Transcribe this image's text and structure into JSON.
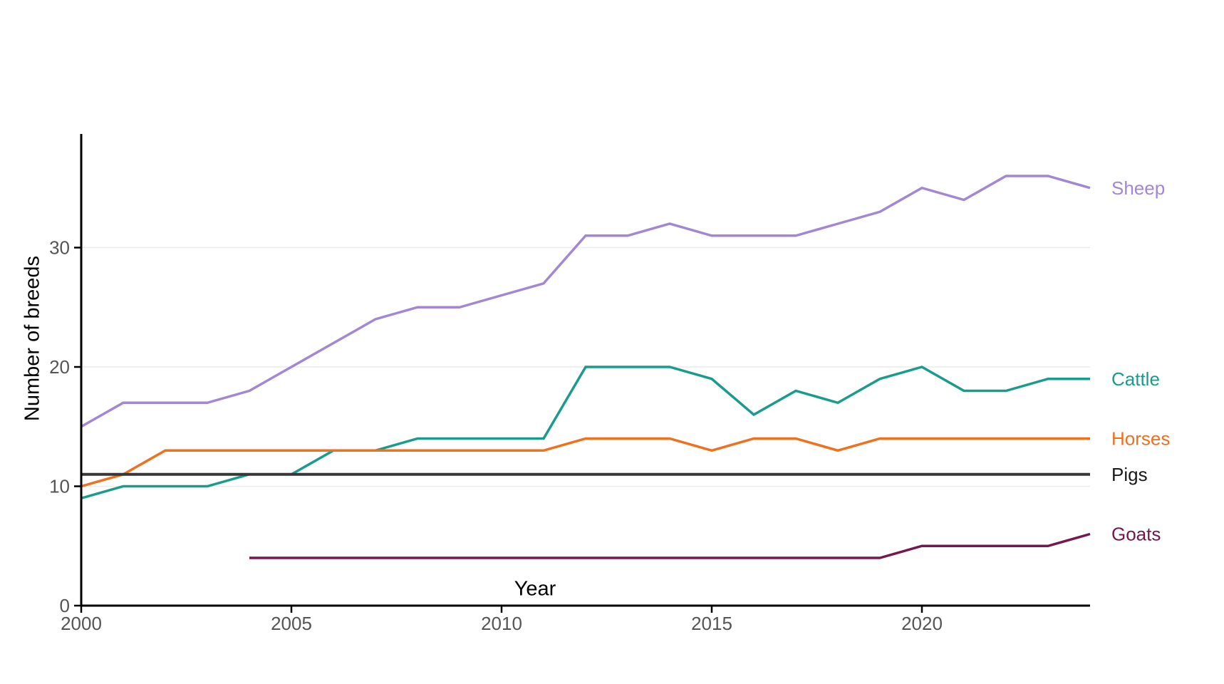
{
  "chart_data": {
    "type": "line",
    "title": "",
    "xlabel": "Year",
    "ylabel": "Number of breeds",
    "x": [
      2000,
      2001,
      2002,
      2003,
      2004,
      2005,
      2006,
      2007,
      2008,
      2009,
      2010,
      2011,
      2012,
      2013,
      2014,
      2015,
      2016,
      2017,
      2018,
      2019,
      2020,
      2021,
      2022,
      2023,
      2024
    ],
    "xlim": [
      2000,
      2024
    ],
    "ylim": [
      0,
      39.5
    ],
    "x_ticks": [
      2000,
      2005,
      2010,
      2015,
      2020
    ],
    "x_tick_labels": [
      "2000",
      "2005",
      "2010",
      "2015",
      "2020"
    ],
    "y_ticks": [
      0,
      10,
      20,
      30
    ],
    "y_tick_labels": [
      "0",
      "10",
      "20",
      "30"
    ],
    "grid": "horizontal-only",
    "gridline_values": [
      10,
      20,
      30
    ],
    "legend_position": "direct-labels-right-of-lines",
    "series": [
      {
        "name": "Sheep",
        "color": "#a287d4",
        "label_color": "#a287d4",
        "values": [
          15,
          17,
          17,
          17,
          18,
          20,
          22,
          24,
          25,
          25,
          26,
          27,
          31,
          31,
          32,
          31,
          31,
          31,
          32,
          33,
          35,
          34,
          36,
          36,
          35
        ]
      },
      {
        "name": "Cattle",
        "color": "#1a9c8c",
        "label_color": "#1a9c8c",
        "values": [
          9,
          10,
          10,
          10,
          11,
          11,
          13,
          13,
          14,
          14,
          14,
          14,
          20,
          20,
          20,
          19,
          16,
          18,
          17,
          19,
          20,
          18,
          18,
          19,
          19
        ]
      },
      {
        "name": "Horses",
        "color": "#f1701e",
        "label_color": "#f1701e",
        "values": [
          10,
          11,
          13,
          13,
          13,
          13,
          13,
          13,
          13,
          13,
          13,
          13,
          14,
          14,
          14,
          13,
          14,
          14,
          13,
          14,
          14,
          14,
          14,
          14,
          14
        ]
      },
      {
        "name": "Pigs",
        "color": "#373737",
        "label_color": "#1a1a1a",
        "values": [
          11,
          11,
          11,
          11,
          11,
          11,
          11,
          11,
          11,
          11,
          11,
          11,
          11,
          11,
          11,
          11,
          11,
          11,
          11,
          11,
          11,
          11,
          11,
          11,
          11
        ]
      },
      {
        "name": "Goats",
        "color": "#75184e",
        "label_color": "#75184e",
        "values": [
          null,
          null,
          null,
          null,
          4,
          4,
          4,
          4,
          4,
          4,
          4,
          4,
          4,
          4,
          4,
          4,
          4,
          4,
          4,
          4,
          5,
          5,
          5,
          5,
          6
        ]
      }
    ],
    "style": {
      "background": "#ffffff",
      "gridline_color": "#ebebeb",
      "axis_color": "#000000",
      "tick_label_color": "#555555"
    }
  }
}
